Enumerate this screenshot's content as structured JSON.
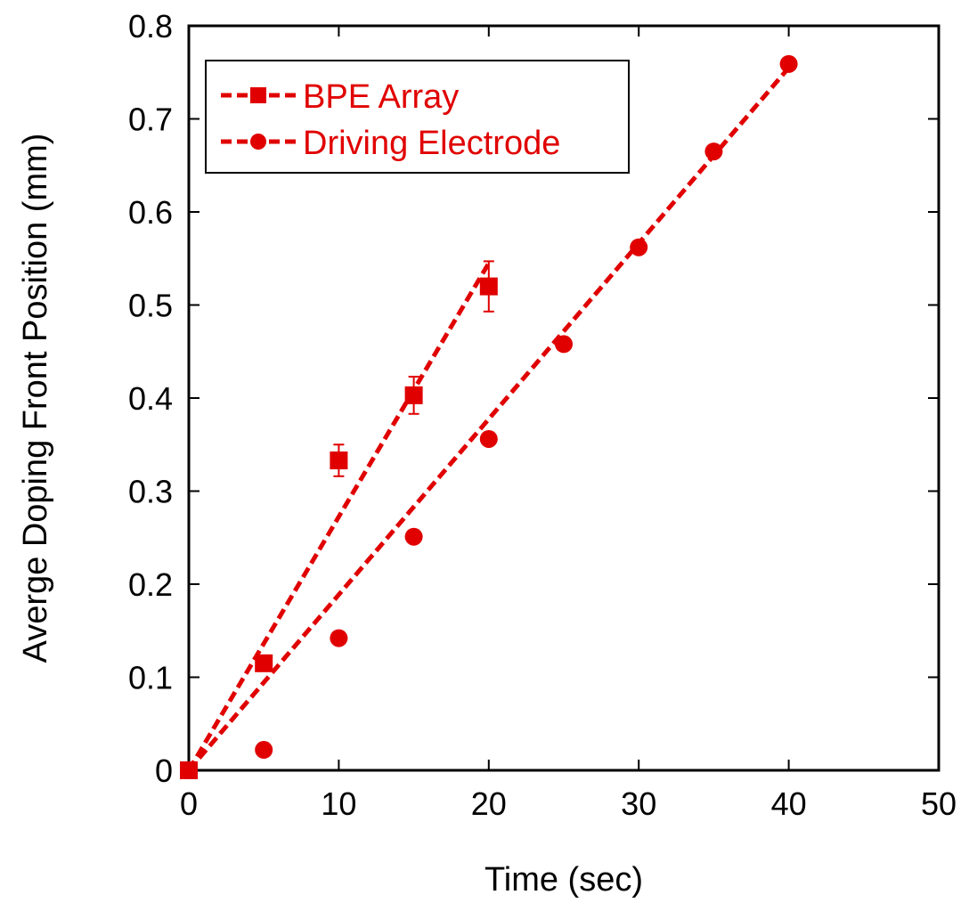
{
  "chart_data": {
    "type": "scatter",
    "xlabel": "Time (sec)",
    "ylabel": "Averge Doping Front Position (mm)",
    "xlim": [
      0,
      50
    ],
    "ylim": [
      0,
      0.8
    ],
    "x_ticks": [
      "0",
      "10",
      "20",
      "30",
      "40",
      "50"
    ],
    "y_ticks": [
      "0",
      "0.1",
      "0.2",
      "0.3",
      "0.4",
      "0.5",
      "0.6",
      "0.7",
      "0.8"
    ],
    "grid": false,
    "legend_position": "top-left",
    "series_color": "#e00000",
    "series": [
      {
        "name": "BPE Array",
        "marker": "square",
        "x": [
          0,
          5,
          10,
          15,
          20
        ],
        "y": [
          0.0,
          0.115,
          0.333,
          0.403,
          0.52
        ],
        "err": [
          0,
          0,
          0.017,
          0.02,
          0.027
        ],
        "fit": {
          "x": [
            0,
            20
          ],
          "y": [
            0.0,
            0.545
          ]
        }
      },
      {
        "name": "Driving Electrode",
        "marker": "circle",
        "x": [
          0,
          5,
          10,
          15,
          20,
          25,
          30,
          35,
          40
        ],
        "y": [
          0.0,
          0.022,
          0.142,
          0.251,
          0.356,
          0.458,
          0.562,
          0.665,
          0.759
        ],
        "err": [],
        "fit": {
          "x": [
            0,
            40
          ],
          "y": [
            0.0,
            0.755
          ]
        }
      }
    ]
  }
}
